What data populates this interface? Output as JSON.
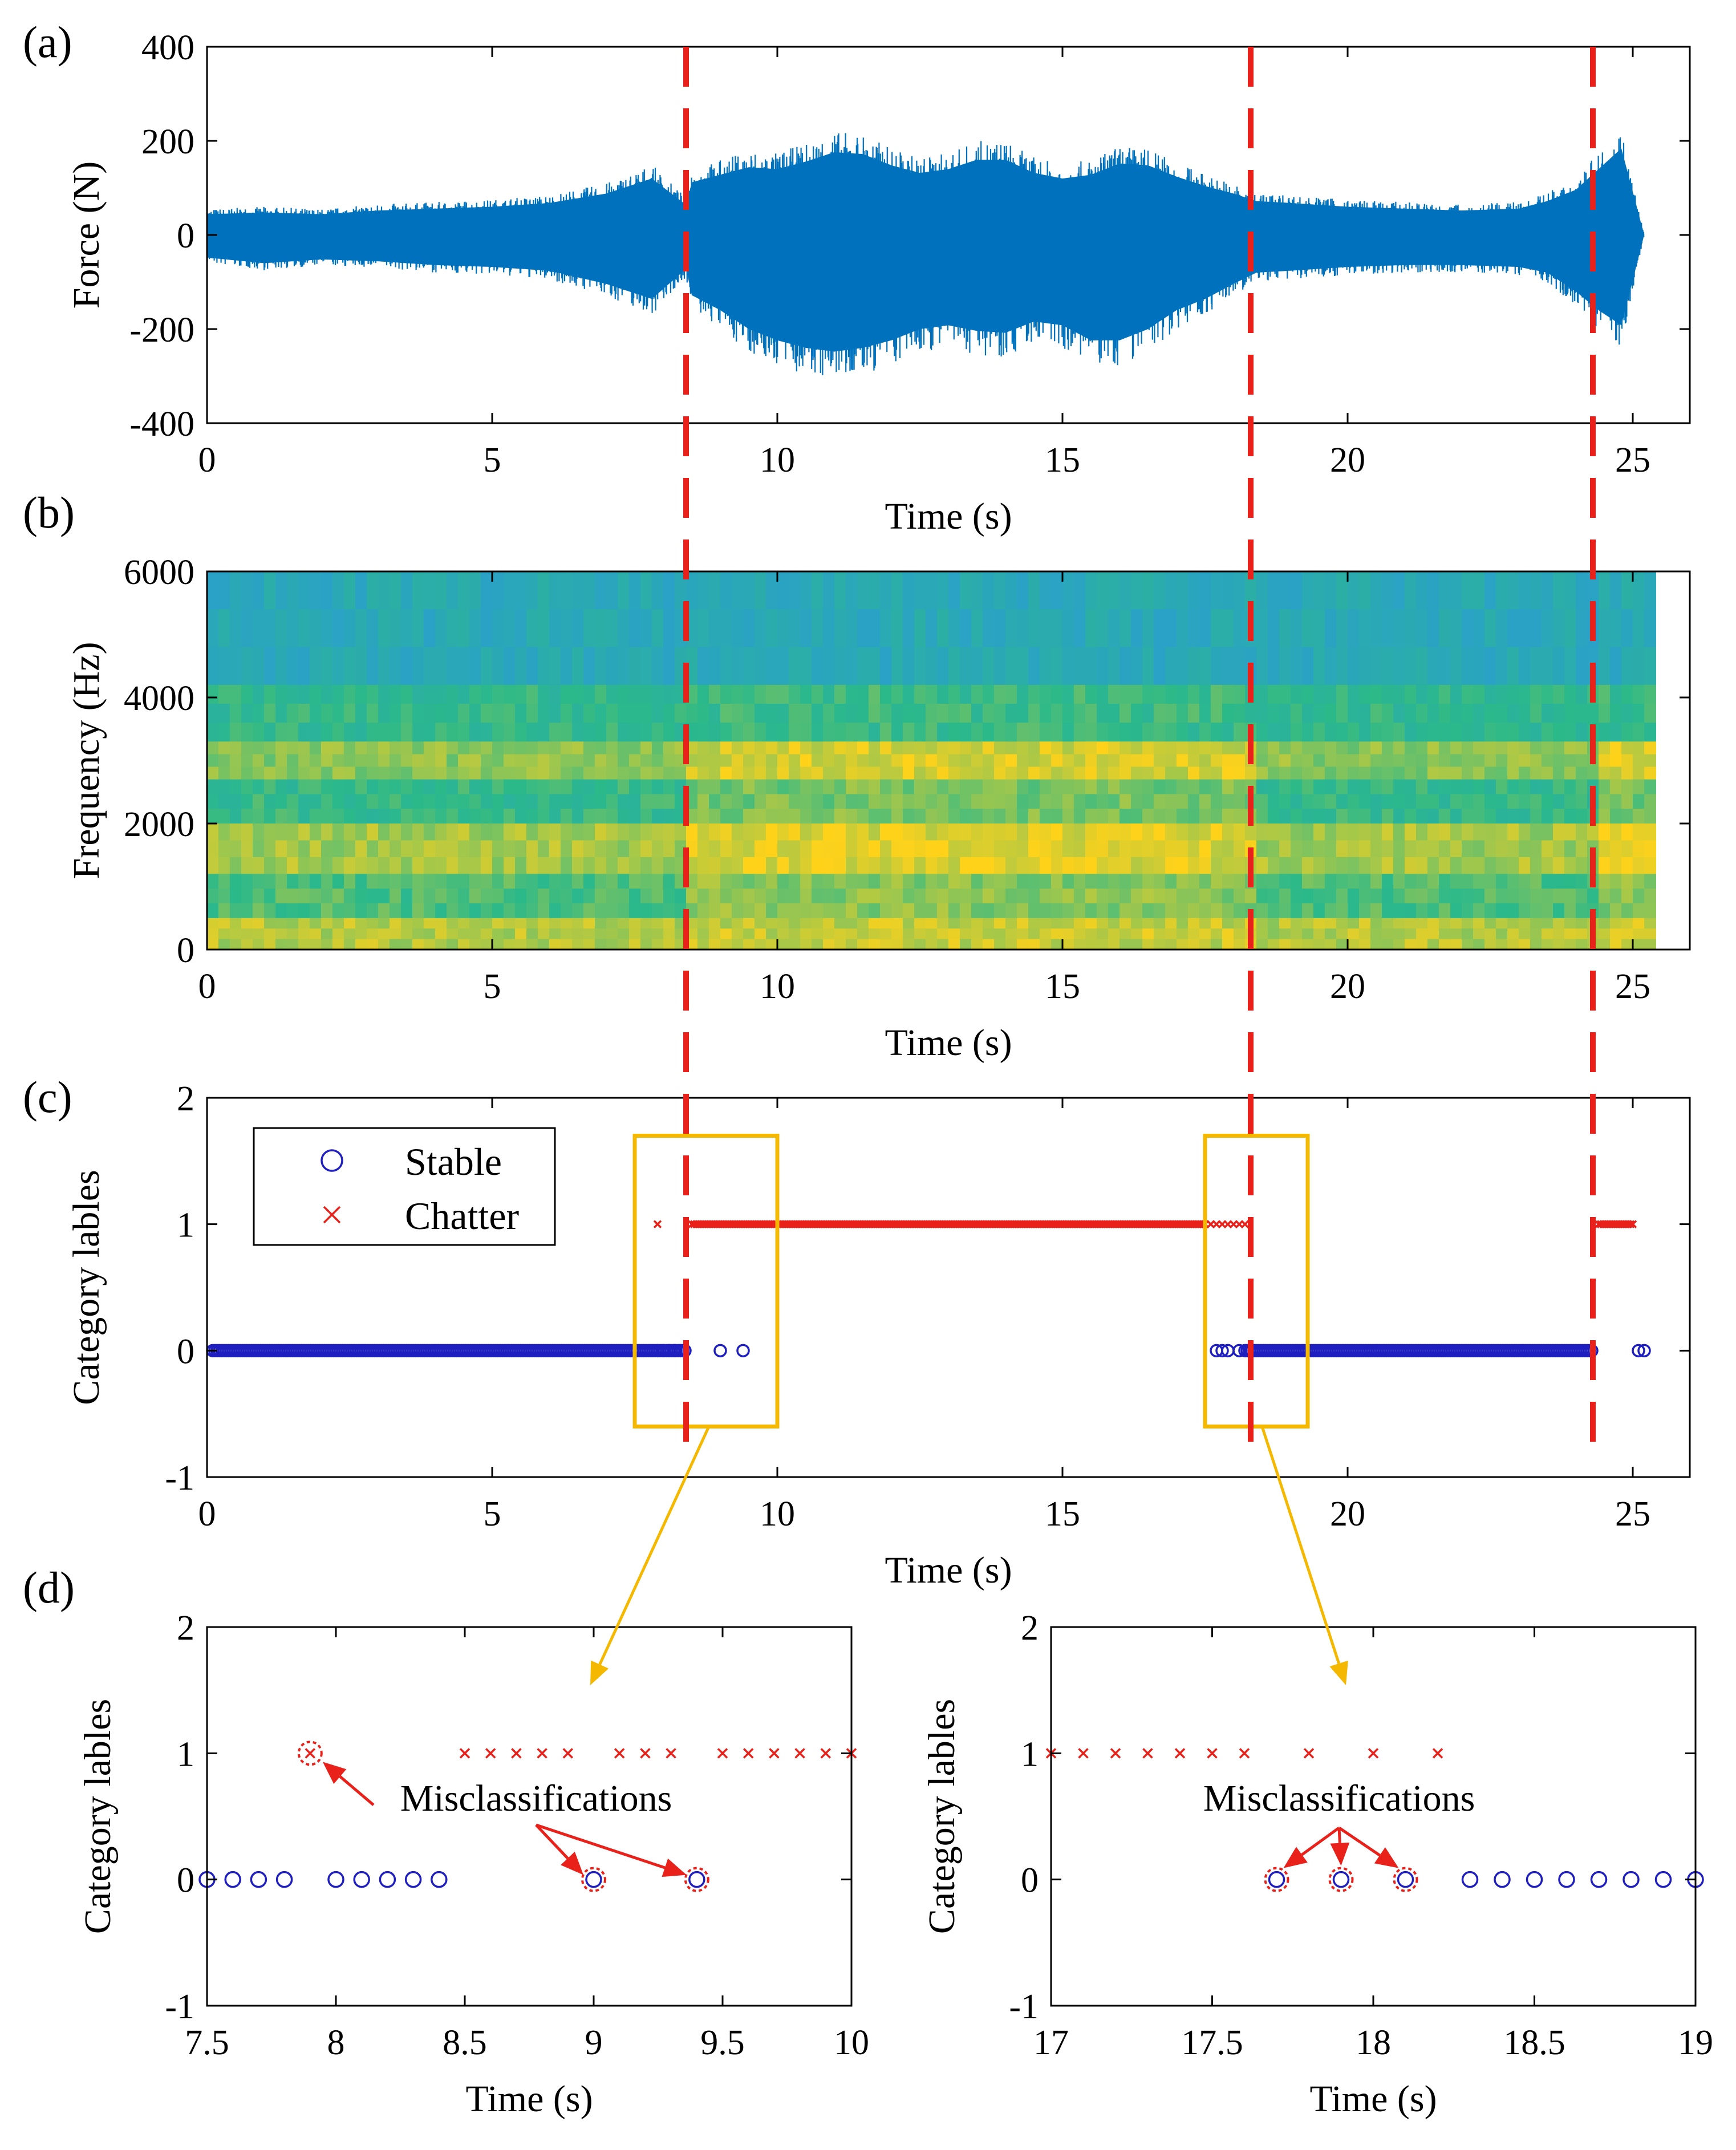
{
  "chart_data": [
    {
      "id": "a",
      "panel_label": "(a)",
      "type": "line",
      "xlabel": "Time (s)",
      "ylabel": "Force (N)",
      "xlim": [
        0,
        26
      ],
      "ylim": [
        -400,
        400
      ],
      "xticks": [
        0,
        5,
        10,
        15,
        20,
        25
      ],
      "yticks": [
        -400,
        -200,
        0,
        200,
        400
      ],
      "series": [
        {
          "color": "#0072BD",
          "envelope": {
            "x": [
              0,
              1,
              2,
              3,
              4,
              5,
              6,
              7,
              7.8,
              8.4,
              8.5,
              9,
              9.5,
              10,
              10.5,
              11,
              11.5,
              12,
              12.5,
              13,
              13.5,
              14,
              14.5,
              15,
              15.5,
              16,
              16.5,
              17,
              17.5,
              18,
              18.4,
              19,
              20,
              21,
              22,
              23,
              23.5,
              24,
              24.4,
              24.8,
              25.2
            ],
            "upper": [
              55,
              60,
              55,
              65,
              70,
              75,
              85,
              110,
              150,
              80,
              140,
              160,
              180,
              175,
              195,
              220,
              215,
              185,
              165,
              175,
              200,
              200,
              165,
              150,
              160,
              190,
              185,
              155,
              130,
              110,
              90,
              85,
              75,
              70,
              65,
              70,
              90,
              120,
              175,
              230,
              0
            ],
            "lower": [
              -60,
              -75,
              -65,
              -70,
              -80,
              -85,
              -95,
              -130,
              -170,
              -90,
              -160,
              -200,
              -250,
              -280,
              -300,
              -310,
              -300,
              -280,
              -250,
              -240,
              -255,
              -260,
              -230,
              -240,
              -280,
              -280,
              -250,
              -200,
              -170,
              -130,
              -100,
              -95,
              -85,
              -80,
              -80,
              -85,
              -100,
              -150,
              -200,
              -240,
              0
            ]
          }
        }
      ]
    },
    {
      "id": "b",
      "panel_label": "(b)",
      "type": "heatmap",
      "xlabel": "Time (s)",
      "ylabel": "Frequency (Hz)",
      "xlim": [
        0,
        26
      ],
      "ylim": [
        0,
        6000
      ],
      "xticks": [
        0,
        5,
        10,
        15,
        20,
        25
      ],
      "yticks": [
        0,
        2000,
        4000,
        6000
      ],
      "data_end_time": 25.2,
      "colors": {
        "low": "#2a9bd8",
        "mid": "#2bb98a",
        "high": "#ffd21a"
      },
      "bands": [
        {
          "f_from": 6000,
          "f_to": 4200,
          "intensity_before": 0.22,
          "intensity_chatter": 0.22
        },
        {
          "f_from": 4200,
          "f_to": 3300,
          "intensity_before": 0.48,
          "intensity_chatter": 0.52
        },
        {
          "f_from": 3300,
          "f_to": 2700,
          "intensity_before": 0.72,
          "intensity_chatter": 0.9
        },
        {
          "f_from": 2700,
          "f_to": 2000,
          "intensity_before": 0.5,
          "intensity_chatter": 0.68
        },
        {
          "f_from": 2000,
          "f_to": 1200,
          "intensity_before": 0.78,
          "intensity_chatter": 0.92
        },
        {
          "f_from": 1200,
          "f_to": 500,
          "intensity_before": 0.58,
          "intensity_chatter": 0.72
        },
        {
          "f_from": 500,
          "f_to": 0,
          "intensity_before": 0.82,
          "intensity_chatter": 0.86
        }
      ]
    },
    {
      "id": "c",
      "panel_label": "(c)",
      "type": "scatter",
      "xlabel": "Time (s)",
      "ylabel": "Category lables",
      "xlim": [
        0,
        26
      ],
      "ylim": [
        -1,
        2
      ],
      "xticks": [
        0,
        5,
        10,
        15,
        20,
        25
      ],
      "yticks": [
        -1,
        0,
        1,
        2
      ],
      "legend": {
        "position": "top-left",
        "entries": [
          {
            "label": "Stable",
            "marker": "circle",
            "color": "#1f1fbf"
          },
          {
            "label": "Chatter",
            "marker": "x",
            "color": "#e8211a"
          }
        ]
      },
      "series": [
        {
          "name": "Stable",
          "marker": "circle",
          "color": "#1f1fbf",
          "dense_ranges": [
            [
              0.1,
              8.4
            ],
            [
              18.2,
              24.3
            ]
          ],
          "x": [
            7.9,
            8.0,
            8.1,
            8.2,
            8.3,
            9.0,
            9.4,
            17.7,
            17.8,
            17.9,
            18.1,
            25.1,
            25.2
          ]
        },
        {
          "name": "Chatter",
          "marker": "x",
          "color": "#e8211a",
          "dense_ranges": [
            [
              8.5,
              17.5
            ],
            [
              24.4,
              25.0
            ]
          ],
          "x": [
            7.9,
            17.5,
            17.6,
            17.7,
            17.8,
            17.9,
            18.0,
            18.1,
            18.2
          ]
        }
      ],
      "zoom_boxes": [
        {
          "x": [
            7.5,
            10.0
          ],
          "y": [
            -0.6,
            1.7
          ]
        },
        {
          "x": [
            17.5,
            19.3
          ],
          "y": [
            -0.6,
            1.7
          ]
        }
      ]
    },
    {
      "id": "d1",
      "panel_label": "(d)",
      "type": "scatter",
      "xlabel": "Time (s)",
      "ylabel": "Category lables",
      "xlim": [
        7.5,
        10
      ],
      "ylim": [
        -1,
        2
      ],
      "xticks": [
        7.5,
        8,
        8.5,
        9,
        9.5,
        10
      ],
      "yticks": [
        -1,
        0,
        1,
        2
      ],
      "series": [
        {
          "name": "Stable",
          "marker": "circle",
          "color": "#1f1fbf",
          "x": [
            7.5,
            7.6,
            7.7,
            7.8,
            8.0,
            8.1,
            8.2,
            8.3,
            8.4,
            9.0,
            9.4
          ],
          "y": [
            0,
            0,
            0,
            0,
            0,
            0,
            0,
            0,
            0,
            0,
            0
          ]
        },
        {
          "name": "Chatter",
          "marker": "x",
          "color": "#e8211a",
          "x": [
            7.9,
            8.5,
            8.6,
            8.7,
            8.8,
            8.9,
            9.1,
            9.2,
            9.3,
            9.5,
            9.6,
            9.7,
            9.8,
            9.9,
            10.0
          ],
          "y": [
            1,
            1,
            1,
            1,
            1,
            1,
            1,
            1,
            1,
            1,
            1,
            1,
            1,
            1,
            1
          ]
        }
      ],
      "misclassified": [
        [
          7.9,
          1
        ],
        [
          9.0,
          0
        ],
        [
          9.4,
          0
        ]
      ],
      "annotation": {
        "text": "Misclassifications"
      }
    },
    {
      "id": "d2",
      "type": "scatter",
      "xlabel": "Time (s)",
      "ylabel": "Category lables",
      "xlim": [
        17,
        19
      ],
      "ylim": [
        -1,
        2
      ],
      "xticks": [
        17,
        17.5,
        18,
        18.5,
        19
      ],
      "yticks": [
        -1,
        0,
        1,
        2
      ],
      "series": [
        {
          "name": "Stable",
          "marker": "circle",
          "color": "#1f1fbf",
          "x": [
            17.7,
            17.9,
            18.1,
            18.3,
            18.4,
            18.5,
            18.6,
            18.7,
            18.8,
            18.9,
            19.0
          ],
          "y": [
            0,
            0,
            0,
            0,
            0,
            0,
            0,
            0,
            0,
            0,
            0
          ]
        },
        {
          "name": "Chatter",
          "marker": "x",
          "color": "#e8211a",
          "x": [
            17.0,
            17.1,
            17.2,
            17.3,
            17.4,
            17.5,
            17.6,
            17.8,
            18.0,
            18.2
          ],
          "y": [
            1,
            1,
            1,
            1,
            1,
            1,
            1,
            1,
            1,
            1
          ]
        }
      ],
      "misclassified": [
        [
          17.7,
          0
        ],
        [
          17.9,
          0
        ],
        [
          18.1,
          0
        ]
      ],
      "annotation": {
        "text": "Misclassifications"
      }
    }
  ],
  "transitions": [
    8.4,
    18.3,
    24.3
  ],
  "colors": {
    "transition_line": "#e8211a",
    "zoom_box": "#f5b800",
    "arrow": "#e8211a"
  }
}
